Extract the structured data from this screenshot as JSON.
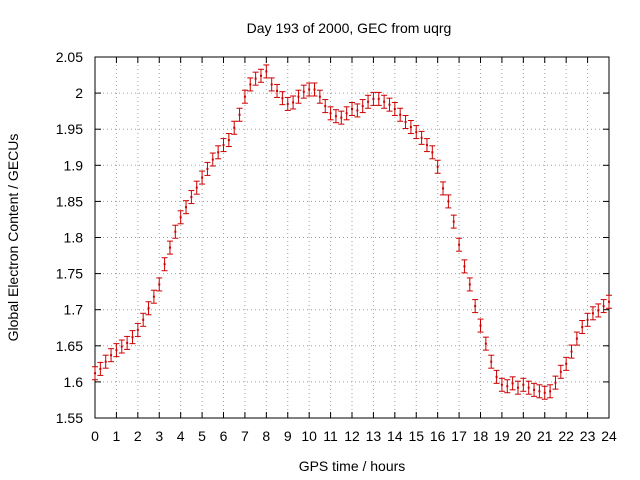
{
  "chart_data": {
    "type": "scatter",
    "title": "Day 193 of 2000, GEC from uqrg",
    "xlabel": "GPS time / hours",
    "ylabel": "Global Electron Content / GECUs",
    "xlim": [
      0,
      24
    ],
    "ylim": [
      1.55,
      2.05
    ],
    "x_ticks": [
      "0",
      "1",
      "2",
      "3",
      "4",
      "5",
      "6",
      "7",
      "8",
      "9",
      "10",
      "11",
      "12",
      "13",
      "14",
      "15",
      "16",
      "17",
      "18",
      "19",
      "20",
      "21",
      "22",
      "23",
      "24"
    ],
    "y_ticks": [
      "1.55",
      "1.6",
      "1.65",
      "1.7",
      "1.75",
      "1.8",
      "1.85",
      "1.9",
      "1.95",
      "2",
      "2.05"
    ],
    "grid": true,
    "marker_color": "#cc0000",
    "error_bar": 0.009,
    "series": [
      {
        "name": "GEC",
        "x": [
          0,
          0.25,
          0.5,
          0.75,
          1,
          1.25,
          1.5,
          1.75,
          2,
          2.25,
          2.5,
          2.75,
          3,
          3.25,
          3.5,
          3.75,
          4,
          4.25,
          4.5,
          4.75,
          5,
          5.25,
          5.5,
          5.75,
          6,
          6.25,
          6.5,
          6.75,
          7,
          7.25,
          7.5,
          7.75,
          8,
          8.25,
          8.5,
          8.75,
          9,
          9.25,
          9.5,
          9.75,
          10,
          10.25,
          10.5,
          10.75,
          11,
          11.25,
          11.5,
          11.75,
          12,
          12.25,
          12.5,
          12.75,
          13,
          13.25,
          13.5,
          13.75,
          14,
          14.25,
          14.5,
          14.75,
          15,
          15.25,
          15.5,
          15.75,
          16,
          16.25,
          16.5,
          16.75,
          17,
          17.25,
          17.5,
          17.75,
          18,
          18.25,
          18.5,
          18.75,
          19,
          19.25,
          19.5,
          19.75,
          20,
          20.25,
          20.5,
          20.75,
          21,
          21.25,
          21.5,
          21.75,
          22,
          22.25,
          22.5,
          22.75,
          23,
          23.25,
          23.5,
          23.75,
          24
        ],
        "y": [
          1.612,
          1.618,
          1.628,
          1.637,
          1.644,
          1.649,
          1.654,
          1.662,
          1.672,
          1.686,
          1.702,
          1.718,
          1.735,
          1.763,
          1.786,
          1.808,
          1.828,
          1.842,
          1.856,
          1.869,
          1.883,
          1.895,
          1.908,
          1.918,
          1.928,
          1.935,
          1.952,
          1.97,
          1.995,
          2.012,
          2.02,
          2.024,
          2.03,
          2.012,
          2.003,
          1.993,
          1.985,
          1.987,
          1.995,
          2.002,
          2.005,
          2.005,
          1.995,
          1.982,
          1.972,
          1.968,
          1.966,
          1.972,
          1.978,
          1.976,
          1.982,
          1.988,
          1.992,
          1.992,
          1.988,
          1.984,
          1.978,
          1.97,
          1.96,
          1.953,
          1.946,
          1.938,
          1.928,
          1.918,
          1.898,
          1.868,
          1.85,
          1.822,
          1.79,
          1.76,
          1.735,
          1.705,
          1.678,
          1.653,
          1.628,
          1.607,
          1.596,
          1.594,
          1.598,
          1.592,
          1.596,
          1.592,
          1.589,
          1.587,
          1.585,
          1.587,
          1.599,
          1.614,
          1.625,
          1.642,
          1.66,
          1.676,
          1.686,
          1.695,
          1.699,
          1.705,
          1.711
        ]
      }
    ]
  }
}
